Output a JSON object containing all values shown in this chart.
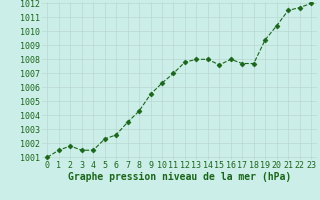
{
  "x": [
    0,
    1,
    2,
    3,
    4,
    5,
    6,
    7,
    8,
    9,
    10,
    11,
    12,
    13,
    14,
    15,
    16,
    17,
    18,
    19,
    20,
    21,
    22,
    23
  ],
  "y": [
    1001.0,
    1001.5,
    1001.8,
    1001.5,
    1001.5,
    1002.3,
    1002.6,
    1003.5,
    1004.3,
    1005.5,
    1006.3,
    1007.0,
    1007.8,
    1008.0,
    1008.0,
    1007.6,
    1008.0,
    1007.7,
    1007.7,
    1009.4,
    1010.4,
    1011.5,
    1011.7,
    1012.0
  ],
  "ylim_min": 1001.0,
  "ylim_max": 1012.0,
  "xlim_min": -0.5,
  "xlim_max": 23.5,
  "yticks": [
    1001,
    1002,
    1003,
    1004,
    1005,
    1006,
    1007,
    1008,
    1009,
    1010,
    1011,
    1012
  ],
  "xticks": [
    0,
    1,
    2,
    3,
    4,
    5,
    6,
    7,
    8,
    9,
    10,
    11,
    12,
    13,
    14,
    15,
    16,
    17,
    18,
    19,
    20,
    21,
    22,
    23
  ],
  "line_color": "#1a6618",
  "marker": "D",
  "marker_size": 2.5,
  "bg_color": "#cceee8",
  "grid_color": "#b8d8d0",
  "xlabel": "Graphe pression niveau de la mer (hPa)",
  "xlabel_color": "#1a6618",
  "xlabel_fontsize": 7,
  "tick_fontsize": 6,
  "fig_bg": "#cceee8"
}
